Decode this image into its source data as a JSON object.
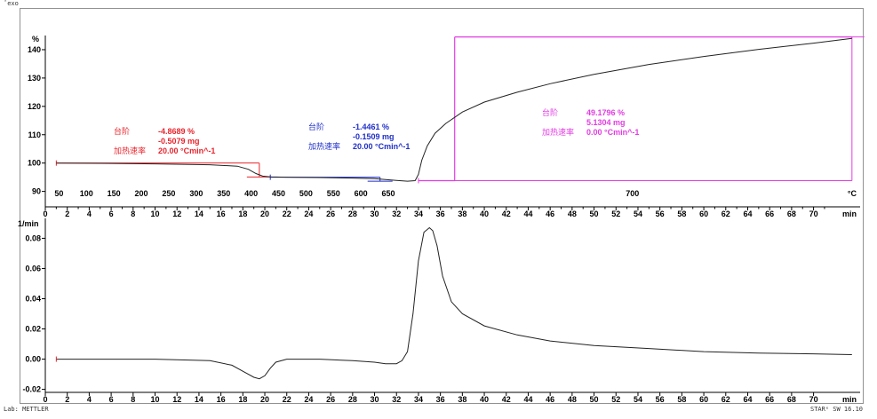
{
  "header": {
    "exo": "ˆexo"
  },
  "footer": {
    "lab": "Lab: METTLER",
    "software": "STARᵉ SW 16.10"
  },
  "chart_data": [
    {
      "type": "line",
      "yunit": "%",
      "time_unit": "min",
      "temp_unit": "°C",
      "xlim": [
        0,
        74
      ],
      "ylim": [
        88,
        145
      ],
      "yticks": [
        90,
        100,
        110,
        120,
        130,
        140
      ],
      "xticks": [
        0,
        2,
        4,
        6,
        8,
        10,
        12,
        14,
        16,
        18,
        20,
        22,
        24,
        26,
        28,
        30,
        32,
        34,
        36,
        38,
        40,
        42,
        44,
        46,
        48,
        50,
        52,
        54,
        56,
        58,
        60,
        62,
        64,
        66,
        68,
        70
      ],
      "temperature_ticks": [
        {
          "label": "50",
          "t": 1.25
        },
        {
          "label": "100",
          "t": 3.75
        },
        {
          "label": "150",
          "t": 6.25
        },
        {
          "label": "200",
          "t": 8.75
        },
        {
          "label": "250",
          "t": 11.25
        },
        {
          "label": "300",
          "t": 13.75
        },
        {
          "label": "350",
          "t": 16.25
        },
        {
          "label": "400",
          "t": 18.75
        },
        {
          "label": "450",
          "t": 21.25
        },
        {
          "label": "500",
          "t": 23.75
        },
        {
          "label": "550",
          "t": 26.25
        },
        {
          "label": "600",
          "t": 28.75
        },
        {
          "label": "650",
          "t": 31.25
        },
        {
          "label": "700",
          "t": 53.5
        }
      ],
      "series": [
        {
          "x": [
            1,
            5,
            10,
            15,
            17.5,
            18.5,
            19.2,
            19.8,
            20.5,
            22,
            25,
            28,
            30,
            31,
            32,
            33,
            33.7,
            34,
            34.3,
            34.8,
            35.5,
            36.5,
            38,
            40,
            43,
            46,
            50,
            55,
            60,
            65,
            70,
            73.5
          ],
          "y": [
            100,
            99.9,
            99.7,
            99.4,
            98.9,
            97.8,
            96.3,
            95.4,
            95.1,
            95.0,
            94.9,
            94.7,
            94.5,
            94.2,
            93.9,
            93.6,
            93.8,
            96,
            101,
            106,
            110.5,
            114,
            118,
            121.5,
            125,
            128,
            131.3,
            134.8,
            137.6,
            140.1,
            142.3,
            144.0
          ]
        }
      ],
      "steps": [
        {
          "label": "台阶",
          "percent": "-4.8689 %",
          "mass": "-0.5079 mg",
          "rate_label": "加热速率",
          "rate": "20.00 °Cmin^-1",
          "color": "#e8242c",
          "x0": 1,
          "x1": 19.5,
          "y0": 100,
          "y1": 95.1
        },
        {
          "label": "台阶",
          "percent": "-1.4461 %",
          "mass": "-0.1509 mg",
          "rate_label": "加热速率",
          "rate": "20.00 °Cmin^-1",
          "color": "#1f2fc8",
          "x0": 20.5,
          "x1": 30.5,
          "y0": 95.0,
          "y1": 93.6
        },
        {
          "label": "台阶",
          "percent": "49.1796 %",
          "mass": "5.1304 mg",
          "rate_label": "加热速率",
          "rate": "0.00 °Cmin^-1",
          "color": "#e23de2",
          "x0": 34,
          "x1": 73.5,
          "y0": 93.8,
          "y1": 144.5
        }
      ]
    },
    {
      "type": "line",
      "yunit": "1/min",
      "time_unit": "min",
      "xlim": [
        0,
        74
      ],
      "ylim": [
        -0.022,
        0.092
      ],
      "yticks": [
        -0.02,
        0,
        0.02,
        0.04,
        0.06,
        0.08
      ],
      "ytick_labels": [
        "-0.02",
        "0.00",
        "0.02",
        "0.04",
        "0.06",
        "0.08"
      ],
      "xticks": [
        0,
        2,
        4,
        6,
        8,
        10,
        12,
        14,
        16,
        18,
        20,
        22,
        24,
        26,
        28,
        30,
        32,
        34,
        36,
        38,
        40,
        42,
        44,
        46,
        48,
        50,
        52,
        54,
        56,
        58,
        60,
        62,
        64,
        66,
        68,
        70
      ],
      "series": [
        {
          "x": [
            1,
            5,
            10,
            15,
            17,
            18,
            19,
            19.5,
            20,
            20.5,
            21,
            22,
            25,
            28,
            30,
            31,
            32,
            32.5,
            33,
            33.5,
            34,
            34.5,
            35,
            35.3,
            35.7,
            36.2,
            37,
            38,
            40,
            43,
            46,
            50,
            55,
            60,
            65,
            70,
            73.5
          ],
          "y": [
            0.0,
            0.0,
            0.0,
            -0.001,
            -0.004,
            -0.008,
            -0.012,
            -0.013,
            -0.011,
            -0.006,
            -0.002,
            0.0,
            0.0,
            -0.001,
            -0.002,
            -0.003,
            -0.003,
            -0.001,
            0.005,
            0.03,
            0.065,
            0.084,
            0.087,
            0.085,
            0.075,
            0.055,
            0.038,
            0.03,
            0.022,
            0.016,
            0.012,
            0.009,
            0.007,
            0.005,
            0.004,
            0.0035,
            0.003
          ]
        }
      ]
    }
  ]
}
